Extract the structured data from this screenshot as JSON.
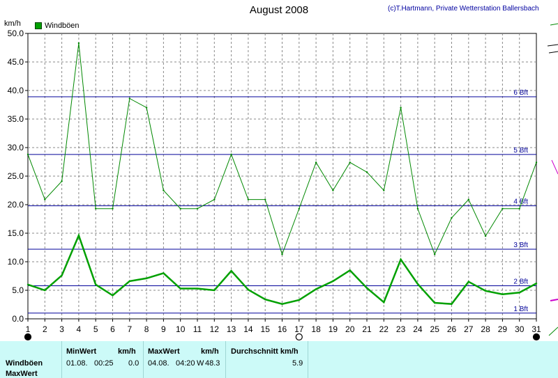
{
  "header": {
    "title": "August 2008",
    "copyright": "(c)T.Hartmann, Private Wetterstation Ballersbach",
    "unit": "km/h"
  },
  "legend": {
    "label": "Windböen"
  },
  "colors": {
    "series": "#008800",
    "avg": "#00a000",
    "bft_lines": "#000099",
    "grid": "#888888",
    "info_bg": "#ccfaf8"
  },
  "chart_data": {
    "type": "line",
    "title": "August 2008",
    "ylabel": "km/h",
    "xlabel": "",
    "ylim": [
      0,
      50
    ],
    "xlim": [
      1,
      31
    ],
    "y_ticks": [
      "0.0",
      "5.0",
      "10.0",
      "15.0",
      "20.0",
      "25.0",
      "30.0",
      "35.0",
      "40.0",
      "45.0",
      "50.0"
    ],
    "x_ticks": [
      "1",
      "2",
      "3",
      "4",
      "5",
      "6",
      "7",
      "8",
      "9",
      "10",
      "11",
      "12",
      "13",
      "14",
      "15",
      "16",
      "17",
      "18",
      "19",
      "20",
      "21",
      "22",
      "23",
      "24",
      "25",
      "26",
      "27",
      "28",
      "29",
      "30",
      "31"
    ],
    "grid": true,
    "legend_position": "top-left",
    "series": [
      {
        "name": "Windböen",
        "x": [
          1,
          2,
          3,
          4,
          5,
          6,
          7,
          8,
          9,
          10,
          11,
          12,
          13,
          14,
          15,
          16,
          17,
          18,
          19,
          20,
          21,
          22,
          23,
          24,
          25,
          26,
          27,
          28,
          29,
          30,
          31
        ],
        "values": [
          28.8,
          20.9,
          24.1,
          48.3,
          19.3,
          19.3,
          38.6,
          37.0,
          22.5,
          19.3,
          19.3,
          20.9,
          28.8,
          20.9,
          20.9,
          11.3,
          19.3,
          27.4,
          22.5,
          27.4,
          25.7,
          22.5,
          37.0,
          19.3,
          11.3,
          17.7,
          20.9,
          14.5,
          19.3,
          19.3,
          27.4
        ]
      },
      {
        "x": [
          1,
          2,
          3,
          4,
          5,
          6,
          7,
          8,
          9,
          10,
          11,
          12,
          13,
          14,
          15,
          16,
          17,
          18,
          19,
          20,
          21,
          22,
          23,
          24,
          25,
          26,
          27,
          28,
          29,
          30,
          31
        ],
        "values": [
          6.0,
          5.0,
          7.6,
          14.6,
          6.0,
          4.1,
          6.6,
          7.1,
          8.0,
          5.3,
          5.3,
          5.0,
          8.4,
          5.1,
          3.4,
          2.6,
          3.3,
          5.2,
          6.6,
          8.5,
          5.4,
          2.9,
          10.4,
          6.1,
          2.8,
          2.6,
          6.5,
          4.9,
          4.3,
          4.6,
          6.2
        ]
      }
    ],
    "reference_lines": [
      {
        "label": "1 Bft",
        "y": 1.0
      },
      {
        "label": "2 Bft",
        "y": 5.8
      },
      {
        "label": "3 Bft",
        "y": 12.2
      },
      {
        "label": "4 Bft",
        "y": 19.8
      },
      {
        "label": "5 Bft",
        "y": 28.8
      },
      {
        "label": "6 Bft",
        "y": 38.9
      }
    ],
    "moon_phases": [
      {
        "day": 1,
        "phase": "new"
      },
      {
        "day": 17,
        "phase": "full"
      },
      {
        "day": 31,
        "phase": "new"
      }
    ]
  },
  "info": {
    "row_labels": [
      "Windböen",
      "MaxWert"
    ],
    "min_header": "MinWert",
    "min_unit": "km/h",
    "min_date": "01.08.",
    "min_time": "00:25",
    "min_value": "0.0",
    "max_header": "MaxWert",
    "max_unit": "km/h",
    "max_date": "04.08.",
    "max_time": "04:20",
    "max_dir": "W",
    "max_value": "48.3",
    "avg_header": "Durchschnitt km/h",
    "avg_value": "5.9"
  }
}
